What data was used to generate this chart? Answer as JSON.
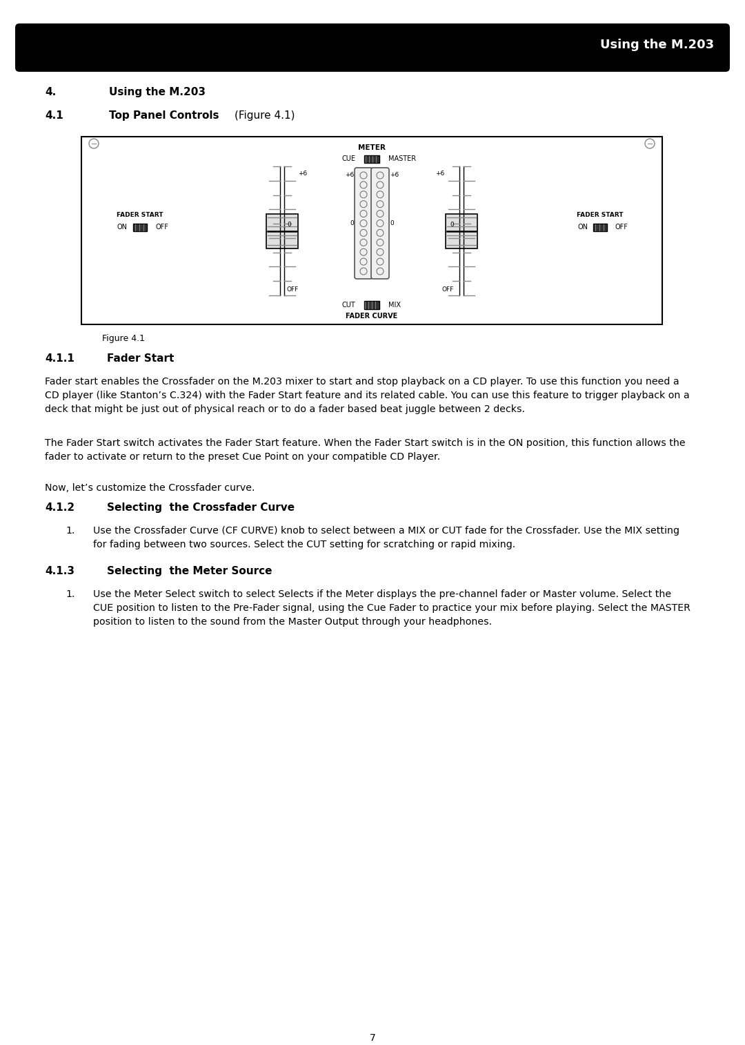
{
  "header_text": "Using the M.203",
  "header_bg": "#000000",
  "header_text_color": "#ffffff",
  "page_bg": "#ffffff",
  "section4_label": "4.",
  "section4_title": "Using the M.203",
  "section41_label": "4.1",
  "section41_title": "Top Panel Controls",
  "section41_fig_ref": "(Figure 4.1)",
  "figure_caption": "Figure 4.1",
  "section411_label": "4.1.1",
  "section411_title": "Fader Start",
  "section411_para1": "Fader start enables the Crossfader on the M.203 mixer to start and stop playback on a CD player. To use this function you need a\nCD player (like Stanton’s C.324) with the Fader Start feature and its related cable. You can use this feature to trigger playback on a\ndeck that might be just out of physical reach or to do a fader based beat juggle between 2 decks.",
  "section411_para2": "The Fader Start switch activates the Fader Start feature. When the Fader Start switch is in the ON position, this function allows the\nfader to activate or return to the preset Cue Point on your compatible CD Player.",
  "section411_para3": "Now, let’s customize the Crossfader curve.",
  "section412_label": "4.1.2",
  "section412_title": "Selecting  the Crossfader Curve",
  "section412_item1_num": "1.",
  "section412_item1_text": "Use the Crossfader Curve (CF CURVE) knob to select between a MIX or CUT fade for the Crossfader. Use the MIX setting\nfor fading between two sources. Select the CUT setting for scratching or rapid mixing.",
  "section413_label": "4.1.3",
  "section413_title": "Selecting  the Meter Source",
  "section413_item1_num": "1.",
  "section413_item1_text": "Use the Meter Select switch to select Selects if the Meter displays the pre-channel fader or Master volume. Select the\nCUE position to listen to the Pre-Fader signal, using the Cue Fader to practice your mix before playing. Select the MASTER\nposition to listen to the sound from the Master Output through your headphones.",
  "page_number": "7"
}
